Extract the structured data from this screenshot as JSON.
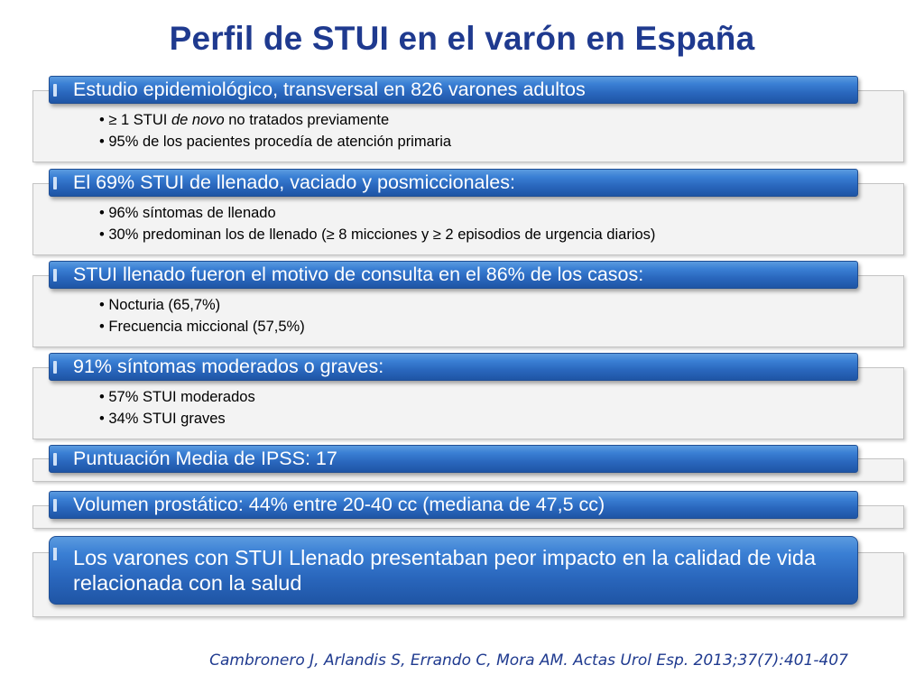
{
  "title": "Perfil de STUI en el varón en España",
  "sections": [
    {
      "heading": "Estudio epidemiológico, transversal en 826 varones adultos",
      "bullets": [
        {
          "pre": "≥ 1 STUI ",
          "em": "de novo",
          "post": " no tratados previamente"
        },
        {
          "pre": "95% de los pacientes procedía de atención primaria"
        }
      ]
    },
    {
      "heading": "El 69%  STUI de llenado, vaciado y posmiccionales:",
      "bullets": [
        {
          "pre": "96% síntomas de llenado"
        },
        {
          "pre": "30% predominan los de llenado  (≥ 8 micciones y ≥ 2 episodios de urgencia diarios)"
        }
      ]
    },
    {
      "heading": "STUI llenado fueron el motivo de consulta en el 86% de los casos:",
      "bullets": [
        {
          "pre": "Nocturia (65,7%)"
        },
        {
          "pre": "Frecuencia miccional (57,5%)"
        }
      ]
    },
    {
      "heading": "91% síntomas moderados o graves:",
      "bullets": [
        {
          "pre": "57% STUI moderados"
        },
        {
          "pre": "34%  STUI graves"
        }
      ]
    },
    {
      "heading": "Puntuación Media de IPSS:  17"
    },
    {
      "heading": "Volumen prostático: 44% entre 20-40 cc (mediana de 47,5 cc)"
    },
    {
      "heading": "Los varones con STUI Llenado presentaban peor impacto en la calidad de vida relacionada con la salud"
    }
  ],
  "citation": "Cambronero J, Arlandis S, Errando C, Mora AM. Actas Urol Esp. 2013;37(7):401-407",
  "colors": {
    "title": "#1f3a8f",
    "bar_blue": "#2a67bd",
    "panel_bg": "#f3f3f3"
  }
}
